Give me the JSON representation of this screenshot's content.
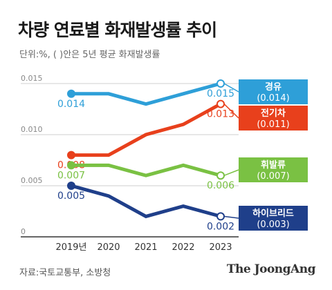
{
  "title": "차량 연료별 화재발생률 추이",
  "subtitle": "단위:%, ( )안은 5년 평균 화재발생률",
  "source": "자료:국토교통부, 소방청",
  "brand": "The JoongAng",
  "chart_data": {
    "type": "line",
    "x": [
      "2019년",
      "2020",
      "2021",
      "2022",
      "2023"
    ],
    "y_ticks": [
      "0",
      "0.005",
      "0.010",
      "0.015"
    ],
    "ylim": [
      0,
      0.015
    ],
    "grid": true,
    "series": [
      {
        "name": "경유",
        "avg_label": "(0.014)",
        "color": "#2e9fd8",
        "values": [
          0.014,
          0.014,
          0.013,
          0.014,
          0.015
        ],
        "start_label": "0.014",
        "end_label": "0.015"
      },
      {
        "name": "전기차",
        "avg_label": "(0.011)",
        "color": "#e8401c",
        "values": [
          0.008,
          0.008,
          0.01,
          0.011,
          0.013
        ],
        "start_label": "0.008",
        "end_label": "0.013"
      },
      {
        "name": "휘발류",
        "avg_label": "(0.007)",
        "color": "#7ac143",
        "values": [
          0.007,
          0.007,
          0.006,
          0.007,
          0.006
        ],
        "start_label": "0.007",
        "end_label": "0.006"
      },
      {
        "name": "하이브리드",
        "avg_label": "(0.003)",
        "color": "#1f3f8a",
        "values": [
          0.005,
          0.004,
          0.002,
          0.003,
          0.002
        ],
        "start_label": "0.005",
        "end_label": "0.002"
      }
    ]
  }
}
